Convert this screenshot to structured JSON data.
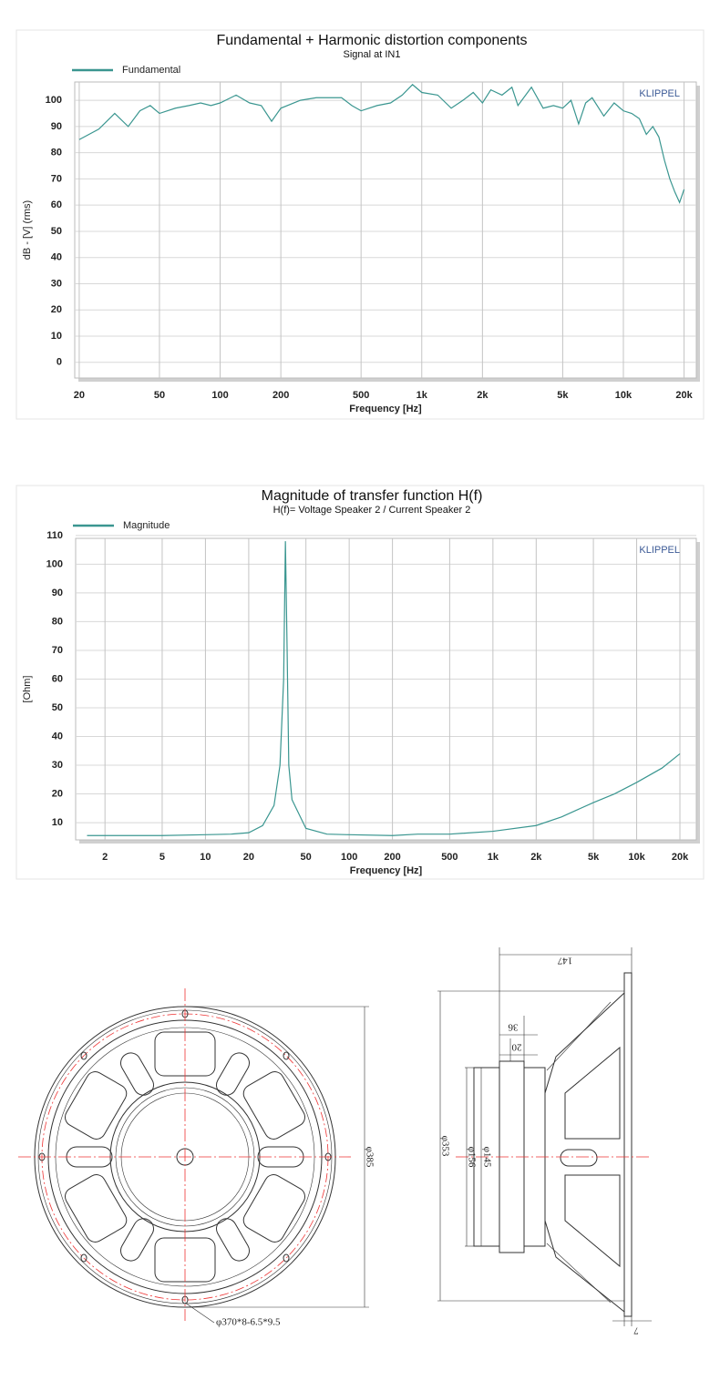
{
  "chart_data": [
    {
      "type": "line",
      "title": "Fundamental + Harmonic distortion components",
      "subtitle": "Signal at IN1",
      "xlabel": "Frequency [Hz]",
      "ylabel": "dB - [V] (rms)",
      "annotation": "KLIPPEL",
      "xscale": "log",
      "grid": true,
      "legend": "top-left",
      "x": [
        20,
        25,
        30,
        35,
        40,
        45,
        50,
        60,
        70,
        80,
        90,
        100,
        120,
        140,
        160,
        180,
        200,
        250,
        300,
        400,
        450,
        500,
        600,
        700,
        800,
        900,
        1000,
        1200,
        1400,
        1600,
        1800,
        2000,
        2200,
        2500,
        2800,
        3000,
        3500,
        4000,
        4500,
        5000,
        5500,
        6000,
        6500,
        7000,
        8000,
        9000,
        10000,
        11000,
        12000,
        13000,
        14000,
        15000,
        16000,
        17000,
        18000,
        19000,
        20000
      ],
      "series": [
        {
          "name": "Fundamental",
          "color": "#3a9690",
          "values": [
            85,
            89,
            95,
            90,
            96,
            98,
            95,
            97,
            98,
            99,
            98,
            99,
            102,
            99,
            98,
            92,
            97,
            100,
            101,
            101,
            98,
            96,
            98,
            99,
            102,
            106,
            103,
            102,
            97,
            100,
            103,
            99,
            104,
            102,
            105,
            98,
            105,
            97,
            98,
            97,
            100,
            91,
            99,
            101,
            94,
            99,
            96,
            95,
            93,
            87,
            90,
            86,
            77,
            70,
            65,
            61,
            66
          ]
        }
      ],
      "xlim": [
        19,
        23000
      ],
      "ylim": [
        -6,
        107
      ],
      "xticks": [
        20,
        50,
        100,
        200,
        500,
        {
          "value": 1000,
          "label": "1k"
        },
        {
          "value": 2000,
          "label": "2k"
        },
        {
          "value": 5000,
          "label": "5k"
        },
        {
          "value": 10000,
          "label": "10k"
        },
        {
          "value": 20000,
          "label": "20k"
        }
      ],
      "yticks": [
        0,
        10,
        20,
        30,
        40,
        50,
        60,
        70,
        80,
        90,
        100
      ]
    },
    {
      "type": "line",
      "title": "Magnitude of transfer function H(f)",
      "subtitle": "H(f)= Voltage Speaker 2 / Current Speaker 2",
      "xlabel": "Frequency [Hz]",
      "ylabel": "[Ohm]",
      "annotation": "KLIPPEL",
      "xscale": "log",
      "grid": true,
      "legend": "top-left",
      "x": [
        1.5,
        5,
        10,
        15,
        20,
        25,
        30,
        33,
        35,
        36,
        37,
        38,
        40,
        50,
        70,
        100,
        200,
        300,
        500,
        1000,
        2000,
        3000,
        5000,
        7000,
        10000,
        15000,
        20000
      ],
      "series": [
        {
          "name": "Magnitude",
          "color": "#3a9690",
          "values": [
            5.5,
            5.5,
            5.8,
            6,
            6.5,
            9,
            16,
            30,
            60,
            108,
            70,
            30,
            18,
            8,
            6,
            5.8,
            5.5,
            6,
            6,
            7,
            9,
            12,
            17,
            20,
            24,
            29,
            34
          ]
        }
      ],
      "xlim": [
        1.25,
        26000
      ],
      "ylim": [
        4,
        109
      ],
      "xticks": [
        2,
        5,
        10,
        20,
        50,
        100,
        200,
        500,
        {
          "value": 1000,
          "label": "1k"
        },
        {
          "value": 2000,
          "label": "2k"
        },
        {
          "value": 5000,
          "label": "5k"
        },
        {
          "value": 10000,
          "label": "10k"
        },
        {
          "value": 20000,
          "label": "20k"
        }
      ],
      "yticks": [
        10,
        20,
        30,
        40,
        50,
        60,
        70,
        80,
        90,
        100,
        110
      ]
    }
  ],
  "drawing": {
    "overall_depth": "147",
    "magnet_depth": "36",
    "plate_depth": "20",
    "magnet_dia": "φ145",
    "plate_dia": "φ156",
    "baffle_dia": "φ353",
    "outer_dia": "φ385",
    "mounting_holes": "φ370*8-6.5*9.5",
    "flange": "7"
  }
}
